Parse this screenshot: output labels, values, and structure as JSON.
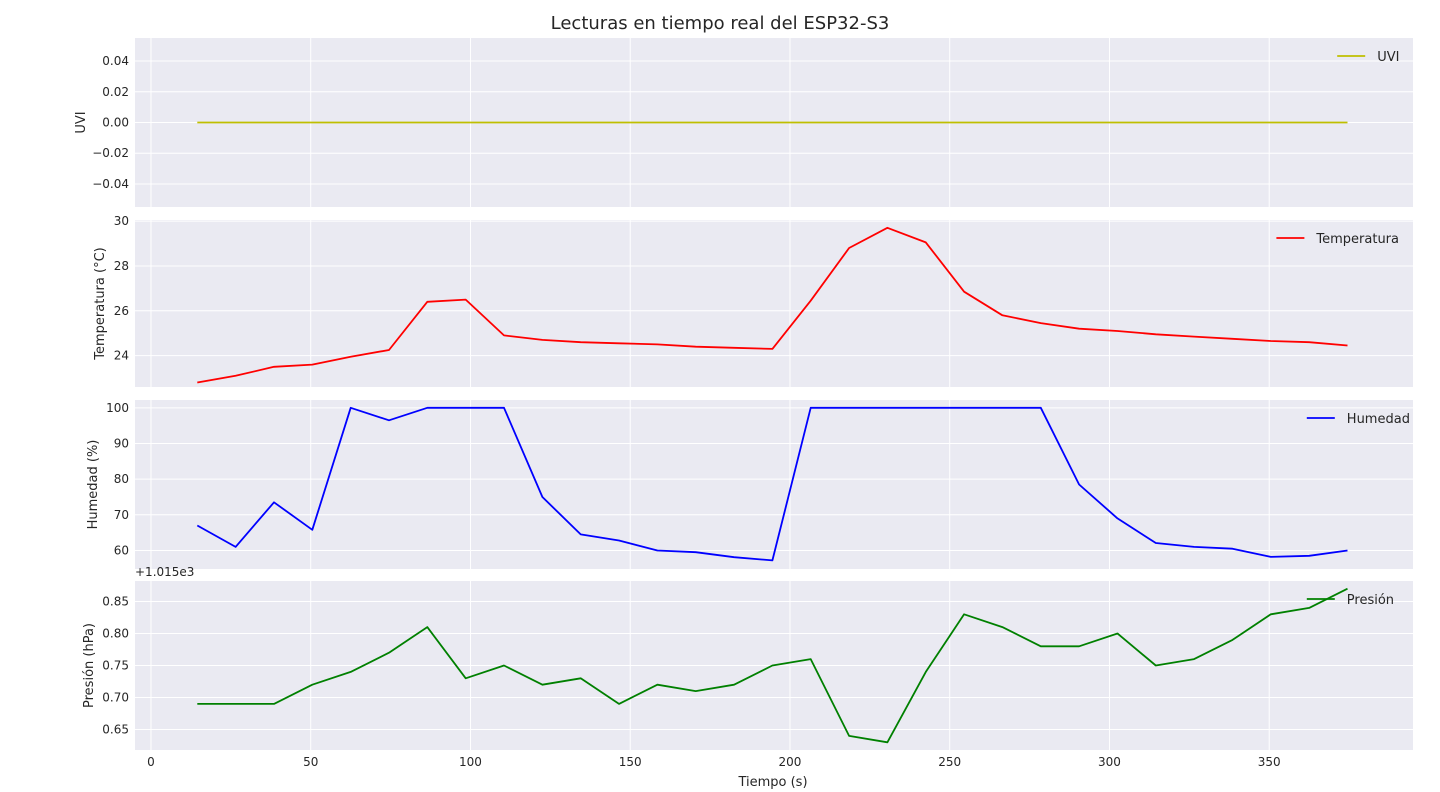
{
  "chart_data": {
    "type": "line",
    "title": "Lecturas en tiempo real del ESP32-S3",
    "xlabel": "Tiempo (s)",
    "x_ticks": [
      0,
      50,
      100,
      150,
      200,
      250,
      300,
      350
    ],
    "xlim": [
      -5,
      395
    ],
    "x": [
      14.5,
      26.5,
      38.5,
      50.5,
      62.5,
      74.5,
      86.5,
      98.5,
      110.5,
      122.5,
      134.5,
      146.5,
      158.5,
      170.5,
      182.5,
      194.5,
      206.5,
      218.5,
      230.5,
      242.5,
      254.5,
      266.5,
      278.5,
      290.5,
      302.5,
      314.5,
      326.5,
      338.5,
      350.5,
      362.5,
      374.5
    ],
    "panels": [
      {
        "name": "UVI",
        "ylabel": "UVI",
        "color": "#bfbf00",
        "ylim": [
          -0.055,
          0.055
        ],
        "y_ticks": [
          0.04,
          0.02,
          0.0,
          -0.02,
          -0.04
        ],
        "y_tick_labels": [
          "0.04",
          "0.02",
          "0.00",
          "−0.02",
          "−0.04"
        ],
        "legend": "UVI",
        "values": [
          0,
          0,
          0,
          0,
          0,
          0,
          0,
          0,
          0,
          0,
          0,
          0,
          0,
          0,
          0,
          0,
          0,
          0,
          0,
          0,
          0,
          0,
          0,
          0,
          0,
          0,
          0,
          0,
          0,
          0,
          0
        ]
      },
      {
        "name": "Temperatura",
        "ylabel": "Temperatura (°C)",
        "color": "#ff0000",
        "ylim": [
          22.6,
          30.05
        ],
        "y_ticks": [
          30,
          28,
          26,
          24
        ],
        "y_tick_labels": [
          "30",
          "28",
          "26",
          "24"
        ],
        "legend": "Temperatura",
        "values": [
          22.8,
          23.1,
          23.5,
          23.6,
          23.95,
          24.25,
          26.4,
          26.5,
          24.9,
          24.7,
          24.6,
          24.55,
          24.5,
          24.4,
          24.35,
          24.3,
          26.45,
          28.8,
          29.7,
          29.05,
          26.85,
          25.8,
          25.45,
          25.2,
          25.1,
          24.95,
          24.85,
          24.75,
          24.65,
          24.6,
          24.45
        ]
      },
      {
        "name": "Humedad",
        "ylabel": "Humedad (%)",
        "color": "#0000ff",
        "ylim": [
          54.8,
          102.2
        ],
        "y_ticks": [
          100,
          90,
          80,
          70,
          60
        ],
        "y_tick_labels": [
          "100",
          "90",
          "80",
          "70",
          "60"
        ],
        "legend": "Humedad",
        "values": [
          67,
          61,
          73.5,
          65.8,
          100,
          96.5,
          100,
          100,
          100,
          75,
          64.5,
          62.8,
          60,
          59.5,
          58.1,
          57.2,
          100,
          100,
          100,
          100,
          100,
          100,
          100,
          78.5,
          69,
          62.1,
          61,
          60.5,
          58.2,
          58.5,
          60
        ]
      },
      {
        "name": "Presión",
        "ylabel": "Presión (hPa)",
        "color": "#008000",
        "ylim": [
          0.618,
          0.882
        ],
        "offset_text": "+1.015e3",
        "y_ticks": [
          0.85,
          0.8,
          0.75,
          0.7,
          0.65
        ],
        "y_tick_labels": [
          "0.85",
          "0.80",
          "0.75",
          "0.70",
          "0.65"
        ],
        "legend": "Presión",
        "values": [
          0.69,
          0.69,
          0.69,
          0.72,
          0.74,
          0.77,
          0.81,
          0.73,
          0.75,
          0.72,
          0.73,
          0.69,
          0.72,
          0.71,
          0.72,
          0.75,
          0.76,
          0.64,
          0.63,
          0.74,
          0.83,
          0.81,
          0.78,
          0.78,
          0.8,
          0.75,
          0.76,
          0.79,
          0.83,
          0.84,
          0.87
        ]
      }
    ]
  }
}
